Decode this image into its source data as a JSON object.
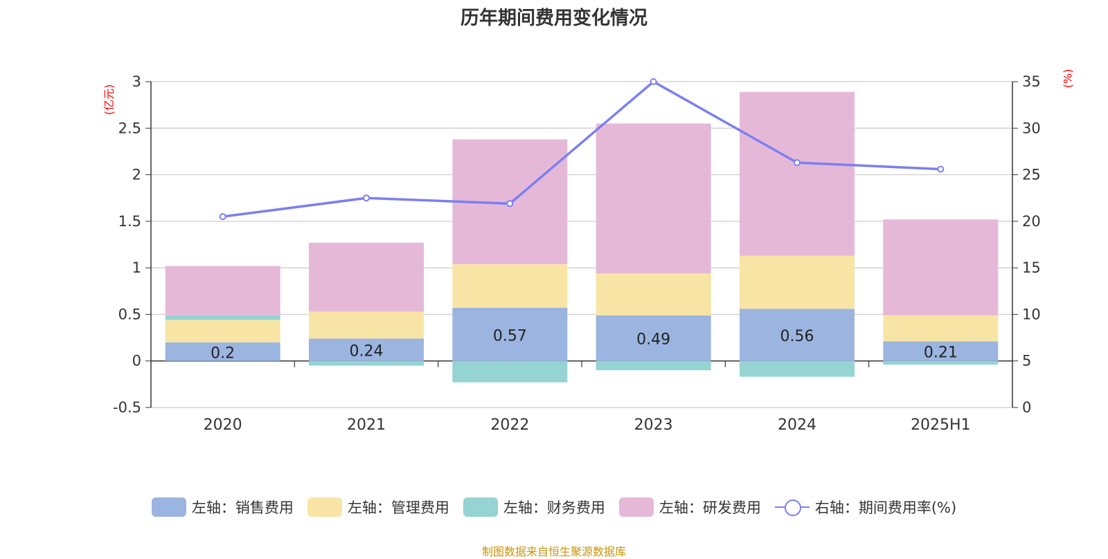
{
  "chart_data": {
    "type": "bar",
    "title": "历年期间费用变化情况",
    "left_unit": "(亿元)",
    "right_unit": "(%)",
    "categories": [
      "2020",
      "2021",
      "2022",
      "2023",
      "2024",
      "2025H1"
    ],
    "left_ylim": [
      -0.5,
      3
    ],
    "left_ticks": [
      "-0.5",
      "0",
      "0.5",
      "1",
      "1.5",
      "2",
      "2.5",
      "3"
    ],
    "right_ylim": [
      0,
      35
    ],
    "right_ticks": [
      "0",
      "5",
      "10",
      "15",
      "20",
      "25",
      "30",
      "35"
    ],
    "stacked": true,
    "grid": true,
    "legend_position": "bottom",
    "series": [
      {
        "name": "左轴：销售费用",
        "color": "#9bb5e0",
        "values": [
          0.2,
          0.24,
          0.57,
          0.49,
          0.56,
          0.21
        ],
        "labels": [
          "0.2",
          "0.24",
          "0.57",
          "0.49",
          "0.56",
          "0.21"
        ]
      },
      {
        "name": "左轴：管理费用",
        "color": "#f8e5a5",
        "values": [
          0.24,
          0.29,
          0.47,
          0.45,
          0.57,
          0.28
        ]
      },
      {
        "name": "左轴：财务费用",
        "color": "#96d3d3",
        "values": [
          0.05,
          -0.05,
          -0.23,
          -0.1,
          -0.17,
          -0.04
        ]
      },
      {
        "name": "左轴：研发费用",
        "color": "#e6b8d8",
        "values": [
          0.53,
          0.74,
          1.34,
          1.61,
          1.76,
          1.03
        ]
      },
      {
        "name": "右轴：期间费用率(%)",
        "color": "#7b7ff0",
        "type": "line",
        "axis": "right",
        "values": [
          20.5,
          22.5,
          21.9,
          35.0,
          26.3,
          25.6
        ]
      }
    ]
  },
  "legend": [
    {
      "label": "左轴：销售费用",
      "color": "#9bb5e0"
    },
    {
      "label": "左轴：管理费用",
      "color": "#f8e5a5"
    },
    {
      "label": "左轴：财务费用",
      "color": "#96d3d3"
    },
    {
      "label": "左轴：研发费用",
      "color": "#e6b8d8"
    },
    {
      "label": "右轴：期间费用率(%)",
      "color": "#7b7ff0"
    }
  ],
  "source": "制图数据来自恒生聚源数据库"
}
